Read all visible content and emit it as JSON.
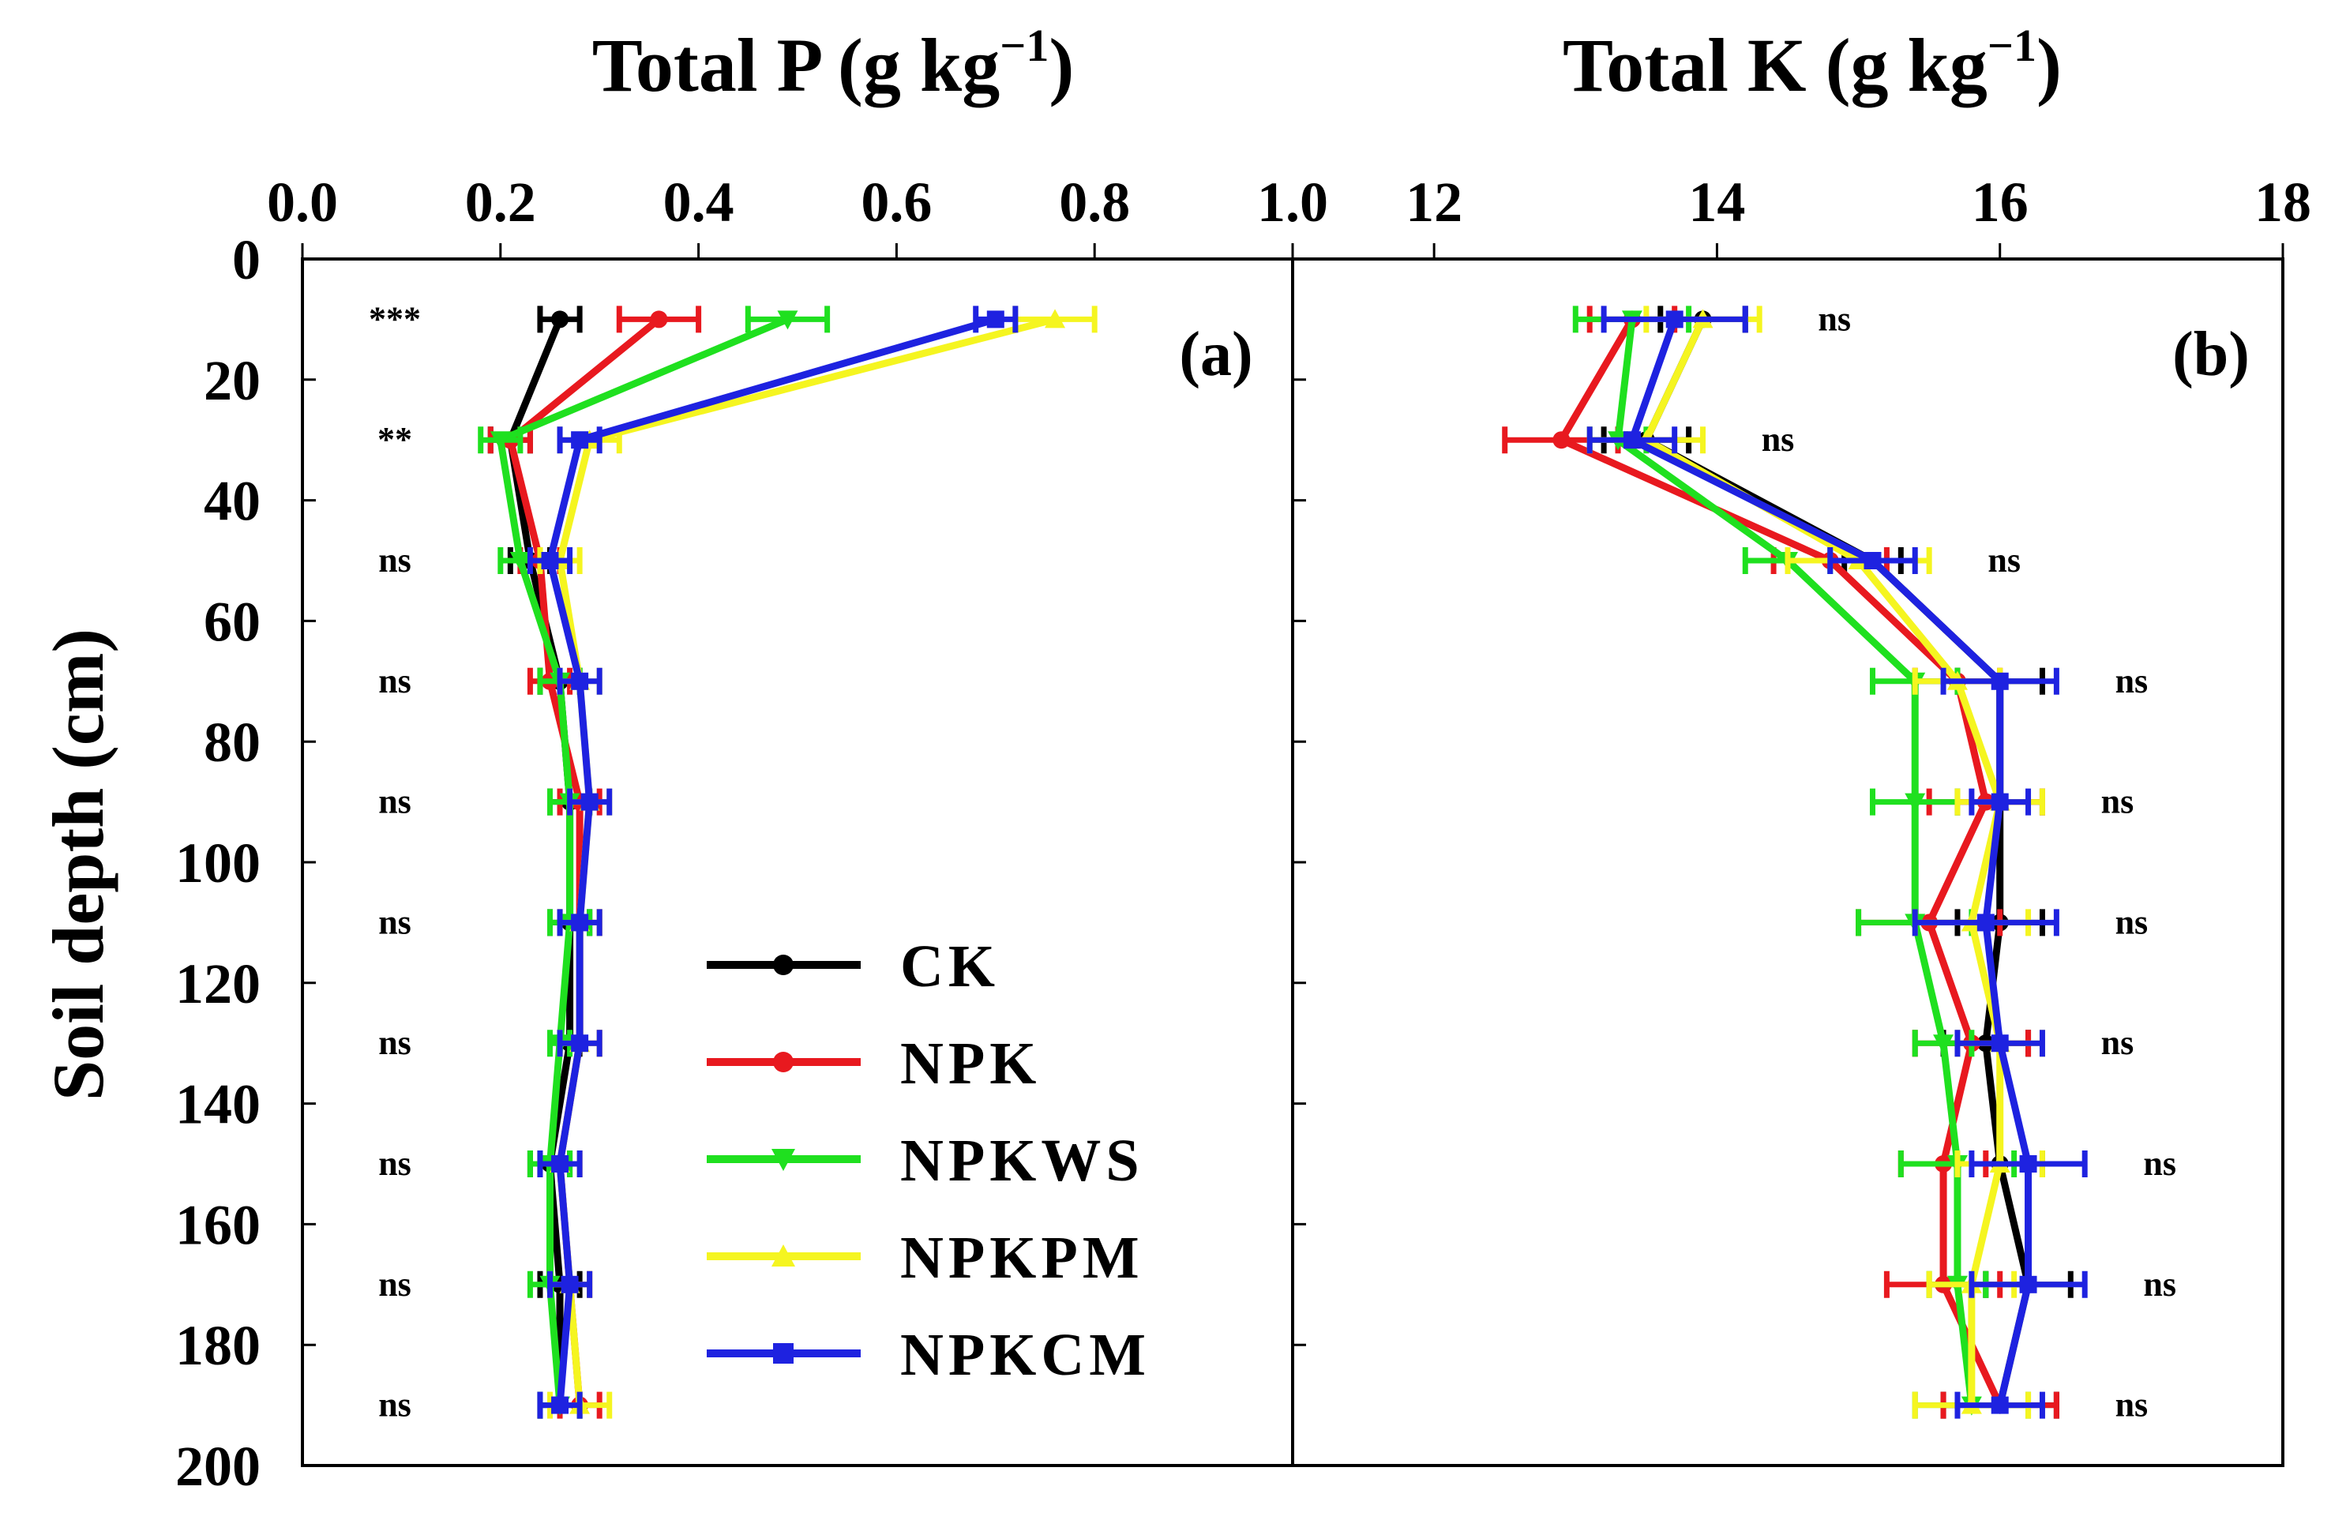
{
  "figure": {
    "ylabel": "Soil depth (cm)",
    "yticks": [
      "0",
      "20",
      "40",
      "60",
      "80",
      "100",
      "120",
      "140",
      "160",
      "180",
      "200"
    ],
    "legend": [
      "CK",
      "NPK",
      "NPKWS",
      "NPKPM",
      "NPKCM"
    ],
    "colors": {
      "CK": "#000000",
      "NPK": "#e8191f",
      "NPKWS": "#1fe01f",
      "NPKPM": "#f5f520",
      "NPKCM": "#1e22e0"
    }
  },
  "chart_data": [
    {
      "type": "line",
      "panel": "(a)",
      "title_main": "Total P (g kg",
      "title_sup": "−1",
      "title_end": ")",
      "xlim": [
        0.0,
        1.0
      ],
      "xticks": [
        "0.0",
        "0.2",
        "0.4",
        "0.6",
        "0.8",
        "1.0"
      ],
      "ylim": [
        0,
        200
      ],
      "depth": [
        10,
        30,
        50,
        70,
        90,
        110,
        130,
        150,
        170,
        190
      ],
      "significance": [
        "***",
        "**",
        "ns",
        "ns",
        "ns",
        "ns",
        "ns",
        "ns",
        "ns",
        "ns"
      ],
      "series": [
        {
          "name": "CK",
          "values": [
            0.26,
            0.21,
            0.23,
            0.26,
            0.27,
            0.27,
            0.27,
            0.25,
            0.26,
            0.26
          ],
          "errors": [
            0.02,
            0.02,
            0.02,
            0.02,
            0.02,
            0.02,
            0.01,
            0.02,
            0.02,
            0.02
          ]
        },
        {
          "name": "NPK",
          "values": [
            0.36,
            0.21,
            0.24,
            0.25,
            0.28,
            0.28,
            0.28,
            0.26,
            0.27,
            0.28
          ],
          "errors": [
            0.04,
            0.02,
            0.02,
            0.02,
            0.02,
            0.02,
            0.02,
            0.02,
            0.02,
            0.02
          ]
        },
        {
          "name": "NPKWS",
          "values": [
            0.49,
            0.2,
            0.22,
            0.26,
            0.27,
            0.27,
            0.26,
            0.25,
            0.25,
            0.26
          ],
          "errors": [
            0.04,
            0.02,
            0.02,
            0.02,
            0.02,
            0.02,
            0.01,
            0.02,
            0.02,
            0.02
          ]
        },
        {
          "name": "NPKPM",
          "values": [
            0.76,
            0.29,
            0.26,
            0.28,
            0.29,
            0.28,
            0.28,
            0.26,
            0.27,
            0.28
          ],
          "errors": [
            0.04,
            0.03,
            0.02,
            0.02,
            0.02,
            0.02,
            0.02,
            0.02,
            0.02,
            0.03
          ]
        },
        {
          "name": "NPKCM",
          "values": [
            0.7,
            0.28,
            0.25,
            0.28,
            0.29,
            0.28,
            0.28,
            0.26,
            0.27,
            0.26
          ],
          "errors": [
            0.02,
            0.02,
            0.02,
            0.02,
            0.02,
            0.02,
            0.02,
            0.02,
            0.02,
            0.02
          ]
        }
      ]
    },
    {
      "type": "line",
      "panel": "(b)",
      "title_main": "Total K (g kg",
      "title_sup": "−1",
      "title_end": ")",
      "xlim": [
        11.0,
        18.0
      ],
      "xticks": [
        "12",
        "14",
        "16",
        "18"
      ],
      "ylim": [
        0,
        200
      ],
      "depth": [
        10,
        30,
        50,
        70,
        90,
        110,
        130,
        150,
        170,
        190
      ],
      "significance": [
        "ns",
        "ns",
        "ns",
        "ns",
        "ns",
        "ns",
        "ns",
        "ns",
        "ns",
        "ns"
      ],
      "series": [
        {
          "name": "CK",
          "values": [
            13.9,
            13.5,
            15.1,
            16.0,
            16.0,
            16.0,
            15.9,
            16.0,
            16.2,
            16.0
          ],
          "errors": [
            0.3,
            0.3,
            0.2,
            0.3,
            0.3,
            0.3,
            0.3,
            0.3,
            0.3,
            0.4
          ]
        },
        {
          "name": "NPK",
          "values": [
            13.4,
            12.9,
            14.8,
            15.7,
            15.9,
            15.5,
            15.8,
            15.6,
            15.6,
            16.0
          ],
          "errors": [
            0.3,
            0.4,
            0.4,
            0.3,
            0.4,
            0.5,
            0.4,
            0.3,
            0.4,
            0.4
          ]
        },
        {
          "name": "NPKWS",
          "values": [
            13.4,
            13.3,
            14.5,
            15.4,
            15.4,
            15.4,
            15.6,
            15.7,
            15.7,
            15.8
          ],
          "errors": [
            0.4,
            0.2,
            0.3,
            0.3,
            0.3,
            0.4,
            0.2,
            0.4,
            0.2,
            0.4
          ]
        },
        {
          "name": "NPKPM",
          "values": [
            13.9,
            13.5,
            15.0,
            15.7,
            16.0,
            15.8,
            16.0,
            16.0,
            15.8,
            15.8
          ],
          "errors": [
            0.4,
            0.4,
            0.5,
            0.3,
            0.3,
            0.4,
            0.3,
            0.3,
            0.3,
            0.4
          ]
        },
        {
          "name": "NPKCM",
          "values": [
            13.7,
            13.4,
            15.1,
            16.0,
            16.0,
            15.9,
            16.0,
            16.2,
            16.2,
            16.0
          ],
          "errors": [
            0.5,
            0.3,
            0.3,
            0.4,
            0.2,
            0.5,
            0.3,
            0.4,
            0.4,
            0.3
          ]
        }
      ]
    }
  ]
}
